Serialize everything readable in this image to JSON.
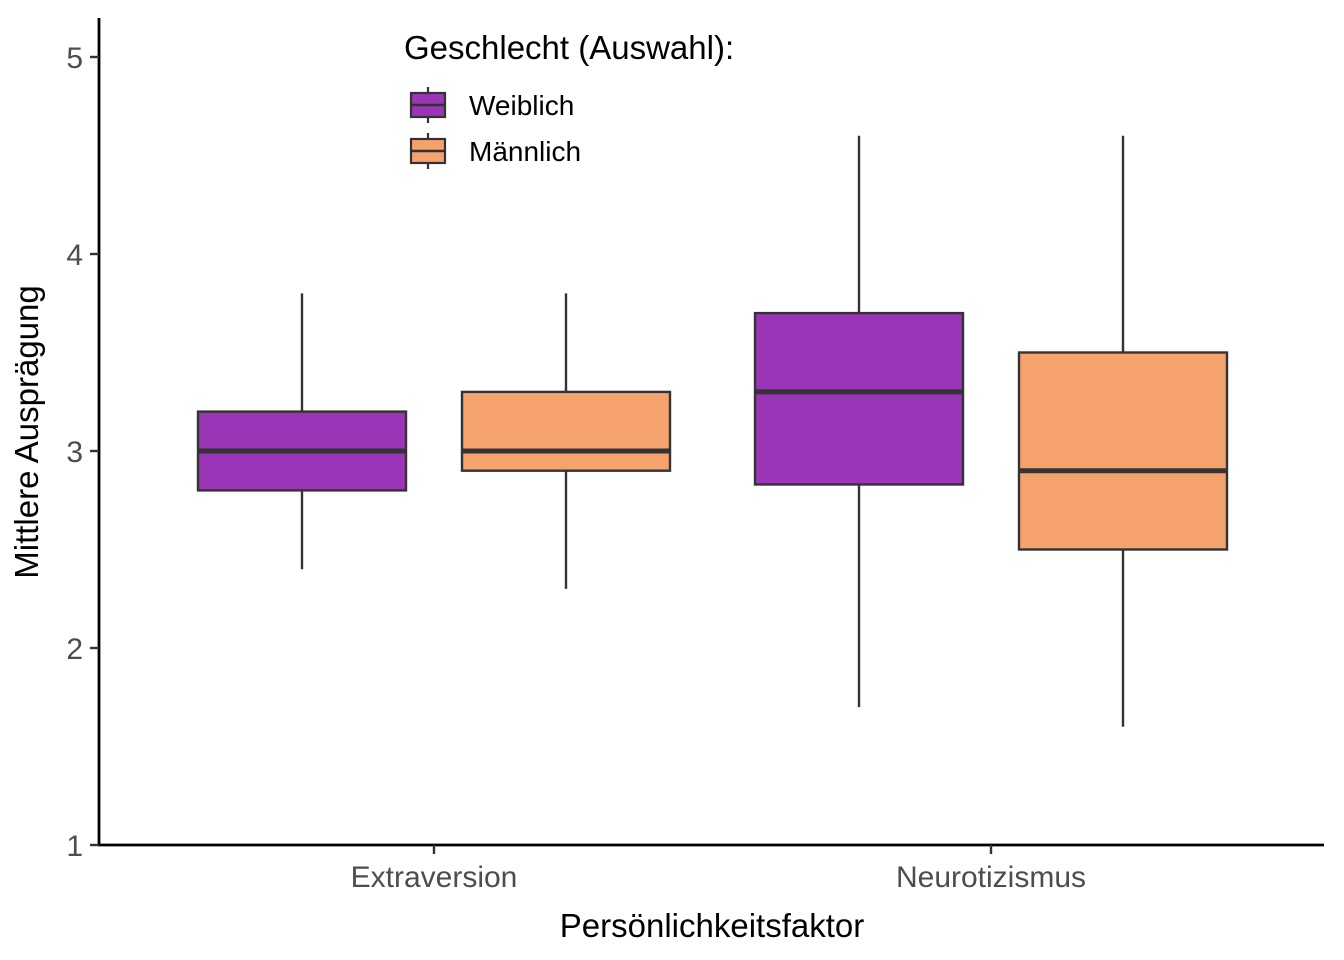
{
  "chart_data": {
    "type": "box",
    "xlabel": "Persönlichkeitsfaktor",
    "ylabel": "Mittlere Ausprägung",
    "ylim": [
      1,
      5.2
    ],
    "yticks": [
      1,
      2,
      3,
      4,
      5
    ],
    "categories": [
      "Extraversion",
      "Neurotizismus"
    ],
    "legend": {
      "title": "Geschlecht (Auswahl):",
      "position": "top-center"
    },
    "grid": false,
    "series": [
      {
        "name": "Weiblich",
        "color": "#9b35b7",
        "boxes": [
          {
            "category": "Extraversion",
            "min": 2.4,
            "q1": 2.8,
            "median": 3.0,
            "q3": 3.2,
            "max": 3.8
          },
          {
            "category": "Neurotizismus",
            "min": 1.7,
            "q1": 2.83,
            "median": 3.3,
            "q3": 3.7,
            "max": 4.6
          }
        ]
      },
      {
        "name": "Männlich",
        "color": "#f5a26d",
        "boxes": [
          {
            "category": "Extraversion",
            "min": 2.3,
            "q1": 2.9,
            "median": 3.0,
            "q3": 3.3,
            "max": 3.8
          },
          {
            "category": "Neurotizismus",
            "min": 1.6,
            "q1": 2.5,
            "median": 2.9,
            "q3": 3.5,
            "max": 4.6
          }
        ]
      }
    ]
  }
}
